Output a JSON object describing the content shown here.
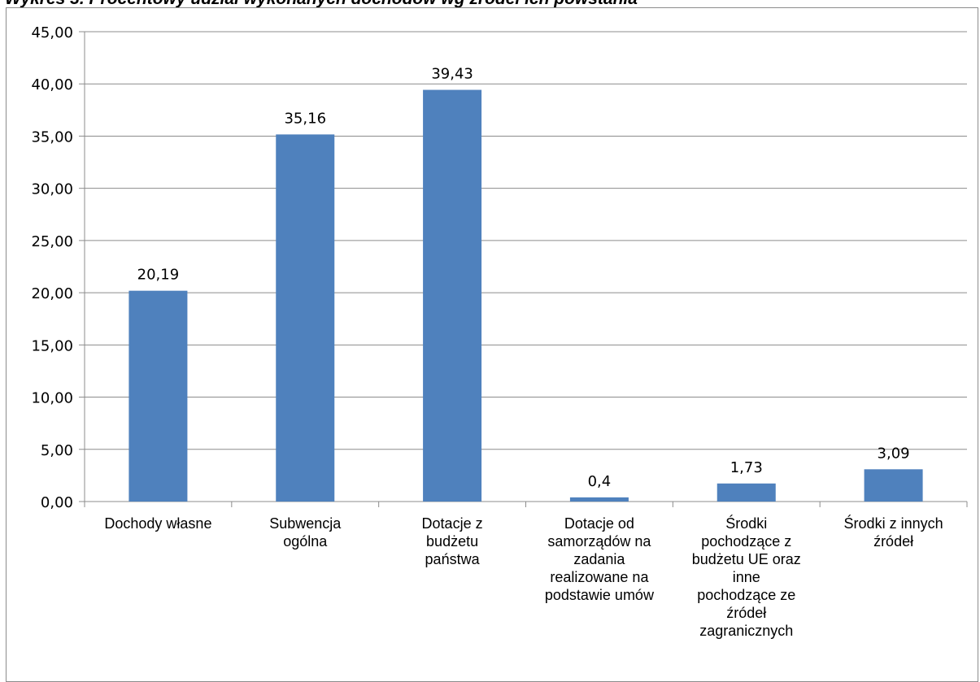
{
  "page": {
    "title": "Wykres 3. Procentowy udział wykonanych dochodów wg źródeł ich powstania"
  },
  "chart_data": {
    "type": "bar",
    "title": "",
    "xlabel": "",
    "ylabel": "",
    "ylim": [
      0,
      45
    ],
    "ytick_step": 5,
    "ytick_labels": [
      "0,00",
      "5,00",
      "10,00",
      "15,00",
      "20,00",
      "25,00",
      "30,00",
      "35,00",
      "40,00",
      "45,00"
    ],
    "grid": true,
    "legend": "none",
    "bar_color": "#4f81bd",
    "categories": [
      [
        "Dochody własne"
      ],
      [
        "Subwencja",
        "ogólna"
      ],
      [
        "Dotacje z",
        "budżetu",
        "państwa"
      ],
      [
        "Dotacje od",
        "samorządów na",
        "zadania",
        "realizowane na",
        "podstawie umów"
      ],
      [
        "Środki",
        "pochodzące z",
        "budżetu UE oraz",
        "inne",
        "pochodzące ze",
        "źródeł",
        "zagranicznych"
      ],
      [
        "Środki z innych",
        "źródeł"
      ]
    ],
    "values": [
      20.19,
      35.16,
      39.43,
      0.4,
      1.73,
      3.09
    ],
    "value_labels": [
      "20,19",
      "35,16",
      "39,43",
      "0,4",
      "1,73",
      "3,09"
    ]
  }
}
